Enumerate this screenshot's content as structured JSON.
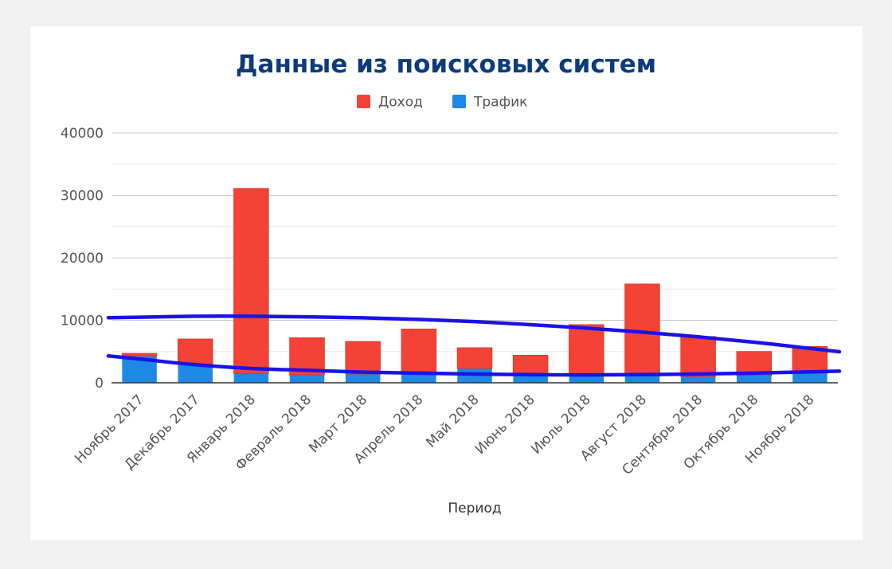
{
  "chart_data": {
    "type": "bar",
    "stacked": true,
    "title": "Данные из поисковых систем",
    "xlabel": "Период",
    "ylabel": "",
    "ylim": [
      0,
      40000
    ],
    "yticks": [
      0,
      10000,
      20000,
      30000,
      40000
    ],
    "grid": true,
    "legend_position": "top",
    "categories": [
      "Ноябрь 2017",
      "Декабрь 2017",
      "Январь 2018",
      "Февраль 2018",
      "Март 2018",
      "Апрель 2018",
      "Май 2018",
      "Июнь 2018",
      "Июль 2018",
      "Август 2018",
      "Сентябрь 2018",
      "Октябрь 2018",
      "Ноябрь 2018"
    ],
    "series": [
      {
        "name": "Трафик",
        "color": "#1e88e5",
        "values": [
          4300,
          3000,
          1500,
          1300,
          1400,
          1800,
          2300,
          1500,
          1200,
          1100,
          1000,
          1200,
          1500
        ]
      },
      {
        "name": "Доход",
        "color": "#f44336",
        "values": [
          400,
          4000,
          29600,
          5900,
          5200,
          6800,
          3300,
          2900,
          8100,
          14700,
          6400,
          3800,
          4300
        ]
      }
    ],
    "legend_order": [
      "Доход",
      "Трафик"
    ],
    "trendlines": [
      {
        "of": "Доход",
        "color": "#1a12e8",
        "values": [
          10500,
          10650,
          10650,
          10550,
          10400,
          10150,
          9800,
          9300,
          8750,
          8100,
          7350,
          6500,
          5500
        ]
      },
      {
        "of": "Трафик",
        "color": "#1a12e8",
        "values": [
          3800,
          2900,
          2300,
          2000,
          1700,
          1550,
          1400,
          1300,
          1250,
          1300,
          1400,
          1550,
          1750
        ]
      }
    ],
    "title_color": "#0d3b7a"
  }
}
